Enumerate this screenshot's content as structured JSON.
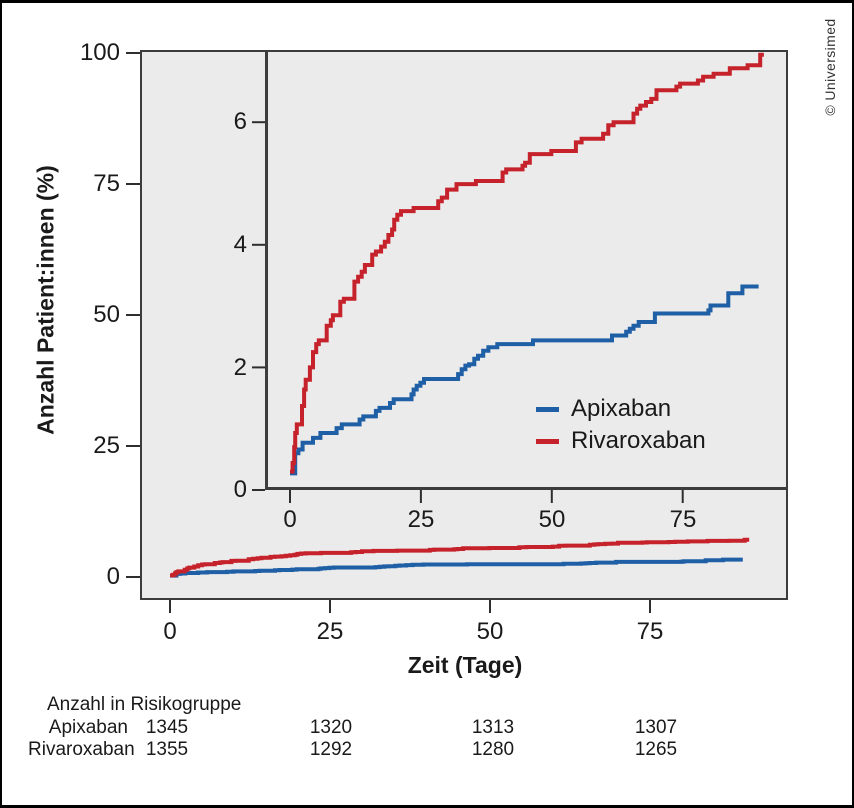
{
  "copyright": "© Universimed",
  "main_chart": {
    "y_label": "Anzahl Patient:innen (%)",
    "x_label": "Zeit (Tage)",
    "y_ticks": [
      "100",
      "75",
      "50",
      "25",
      "0"
    ],
    "x_ticks": [
      "0",
      "25",
      "50",
      "75"
    ]
  },
  "inset_chart": {
    "y_ticks": [
      "6",
      "4",
      "2",
      "0"
    ],
    "x_ticks": [
      "0",
      "25",
      "50",
      "75"
    ]
  },
  "legend": [
    {
      "label": "Apixaban",
      "color": "#1f5fa6"
    },
    {
      "label": "Rivaroxaban",
      "color": "#c5222b"
    }
  ],
  "risk_table": {
    "title": "Anzahl in Risikogruppe",
    "rows": [
      {
        "label": "Apixaban",
        "values": [
          "1345",
          "1320",
          "1313",
          "1307"
        ]
      },
      {
        "label": "Rivaroxaban",
        "values": [
          "1355",
          "1292",
          "1280",
          "1265"
        ]
      }
    ]
  },
  "colors": {
    "apixaban": "#1f5fa6",
    "rivaroxaban": "#c5222b",
    "plot_background": "#ebebeb",
    "frame": "#3c3c3c"
  },
  "chart_data": {
    "type": "line",
    "step": true,
    "title": "",
    "xlabel": "Zeit (Tage)",
    "ylabel": "Anzahl Patient:innen (%)",
    "main_axis": {
      "xlim": [
        -4.5,
        96.5
      ],
      "ylim": [
        0,
        100
      ],
      "yticks": [
        100,
        75,
        50,
        25,
        0
      ],
      "xticks": [
        0,
        25,
        50,
        75
      ],
      "grid": false
    },
    "inset_axis": {
      "xlim": [
        -4.8,
        95
      ],
      "ylim": [
        0,
        7.15
      ],
      "yticks": [
        6,
        4,
        2,
        0
      ],
      "xticks": [
        0,
        25,
        50,
        75
      ],
      "grid": false
    },
    "legend_position": "inset lower right",
    "series": [
      {
        "name": "Apixaban",
        "color": "#1f5fa6",
        "points": [
          [
            0,
            0.27
          ],
          [
            1,
            0.6
          ],
          [
            1.6,
            0.66
          ],
          [
            2.4,
            0.77
          ],
          [
            4.4,
            0.85
          ],
          [
            5.8,
            0.93
          ],
          [
            8.9,
            1.01
          ],
          [
            9.9,
            1.07
          ],
          [
            13.3,
            1.15
          ],
          [
            14,
            1.2
          ],
          [
            16.4,
            1.29
          ],
          [
            17.1,
            1.34
          ],
          [
            19.1,
            1.42
          ],
          [
            19.8,
            1.48
          ],
          [
            23.2,
            1.56
          ],
          [
            23.6,
            1.64
          ],
          [
            24.2,
            1.7
          ],
          [
            24.9,
            1.75
          ],
          [
            25.6,
            1.81
          ],
          [
            32.1,
            1.89
          ],
          [
            32.8,
            1.97
          ],
          [
            33.5,
            2.03
          ],
          [
            34.2,
            2.05
          ],
          [
            35.2,
            2.14
          ],
          [
            35.9,
            2.19
          ],
          [
            36.9,
            2.27
          ],
          [
            37.9,
            2.33
          ],
          [
            39.6,
            2.38
          ],
          [
            46.4,
            2.44
          ],
          [
            61.5,
            2.52
          ],
          [
            64.2,
            2.58
          ],
          [
            64.9,
            2.63
          ],
          [
            65.6,
            2.68
          ],
          [
            66.6,
            2.74
          ],
          [
            69.7,
            2.88
          ],
          [
            79.9,
            2.93
          ],
          [
            80.3,
            3.01
          ],
          [
            83.7,
            3.21
          ],
          [
            86.4,
            3.32
          ],
          [
            89.5,
            3.32
          ]
        ]
      },
      {
        "name": "Rivaroxaban",
        "color": "#c5222b",
        "points": [
          [
            0,
            0.3
          ],
          [
            0.5,
            0.44
          ],
          [
            0.8,
            0.7
          ],
          [
            1,
            0.93
          ],
          [
            1.3,
            1.07
          ],
          [
            2.3,
            1.37
          ],
          [
            2.7,
            1.64
          ],
          [
            3,
            1.8
          ],
          [
            3.8,
            2.0
          ],
          [
            4.4,
            2.25
          ],
          [
            5,
            2.38
          ],
          [
            5.5,
            2.44
          ],
          [
            7,
            2.68
          ],
          [
            7.8,
            2.77
          ],
          [
            8.2,
            2.85
          ],
          [
            9.6,
            3.07
          ],
          [
            10.3,
            3.12
          ],
          [
            12.3,
            3.4
          ],
          [
            13,
            3.48
          ],
          [
            13.7,
            3.56
          ],
          [
            14.3,
            3.67
          ],
          [
            15.7,
            3.84
          ],
          [
            16.4,
            3.89
          ],
          [
            17.4,
            3.97
          ],
          [
            18.1,
            4.05
          ],
          [
            18.8,
            4.16
          ],
          [
            19.5,
            4.25
          ],
          [
            19.9,
            4.41
          ],
          [
            20.5,
            4.49
          ],
          [
            21.2,
            4.55
          ],
          [
            23.6,
            4.6
          ],
          [
            28.3,
            4.71
          ],
          [
            29,
            4.77
          ],
          [
            30,
            4.9
          ],
          [
            31.8,
            4.99
          ],
          [
            35.5,
            5.04
          ],
          [
            40.6,
            5.18
          ],
          [
            41.3,
            5.23
          ],
          [
            44.4,
            5.29
          ],
          [
            44.9,
            5.34
          ],
          [
            45.8,
            5.48
          ],
          [
            49.9,
            5.53
          ],
          [
            54.6,
            5.67
          ],
          [
            55.7,
            5.73
          ],
          [
            59.8,
            5.81
          ],
          [
            60.8,
            5.95
          ],
          [
            61.8,
            6.0
          ],
          [
            65.6,
            6.14
          ],
          [
            66.3,
            6.22
          ],
          [
            66.9,
            6.27
          ],
          [
            68,
            6.33
          ],
          [
            69,
            6.38
          ],
          [
            70,
            6.52
          ],
          [
            73.8,
            6.58
          ],
          [
            74.5,
            6.63
          ],
          [
            77.9,
            6.68
          ],
          [
            78.9,
            6.74
          ],
          [
            80.9,
            6.79
          ],
          [
            84,
            6.88
          ],
          [
            87.4,
            6.93
          ],
          [
            89.8,
            7.1
          ],
          [
            90.5,
            7.1
          ]
        ]
      }
    ],
    "at_risk": {
      "label": "Anzahl in Risikogruppe",
      "times": [
        0,
        25,
        50,
        75
      ],
      "groups": [
        {
          "name": "Apixaban",
          "counts": [
            1345,
            1320,
            1313,
            1307
          ]
        },
        {
          "name": "Rivaroxaban",
          "counts": [
            1355,
            1292,
            1280,
            1265
          ]
        }
      ]
    }
  }
}
